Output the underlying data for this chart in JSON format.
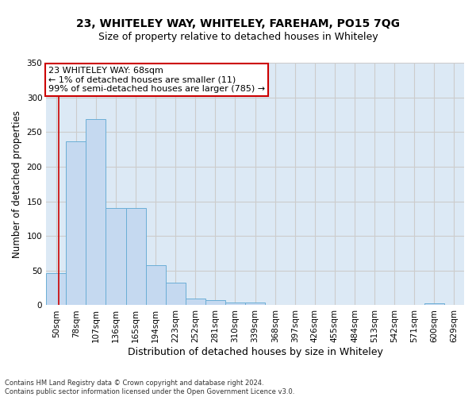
{
  "title_line1": "23, WHITELEY WAY, WHITELEY, FAREHAM, PO15 7QG",
  "title_line2": "Size of property relative to detached houses in Whiteley",
  "xlabel": "Distribution of detached houses by size in Whiteley",
  "ylabel": "Number of detached properties",
  "bar_labels": [
    "50sqm",
    "78sqm",
    "107sqm",
    "136sqm",
    "165sqm",
    "194sqm",
    "223sqm",
    "252sqm",
    "281sqm",
    "310sqm",
    "339sqm",
    "368sqm",
    "397sqm",
    "426sqm",
    "455sqm",
    "484sqm",
    "513sqm",
    "542sqm",
    "571sqm",
    "600sqm",
    "629sqm"
  ],
  "bar_values": [
    46,
    237,
    269,
    140,
    140,
    58,
    33,
    10,
    7,
    4,
    4,
    0,
    0,
    0,
    0,
    0,
    0,
    0,
    0,
    3,
    0
  ],
  "bar_color": "#c5d9f0",
  "bar_edge_color": "#6baed6",
  "annotation_line1": "23 WHITELEY WAY: 68sqm",
  "annotation_line2": "← 1% of detached houses are smaller (11)",
  "annotation_line3": "99% of semi-detached houses are larger (785) →",
  "annotation_box_color": "#ffffff",
  "annotation_box_edge_color": "#cc0000",
  "vline_color": "#cc0000",
  "vline_x_index": 0.5,
  "ylim": [
    0,
    350
  ],
  "yticks": [
    0,
    50,
    100,
    150,
    200,
    250,
    300,
    350
  ],
  "grid_color": "#cccccc",
  "bg_color": "#dce9f5",
  "footer_text": "Contains HM Land Registry data © Crown copyright and database right 2024.\nContains public sector information licensed under the Open Government Licence v3.0.",
  "title_fontsize": 10,
  "subtitle_fontsize": 9,
  "ylabel_fontsize": 8.5,
  "xlabel_fontsize": 9,
  "tick_fontsize": 7.5,
  "annotation_fontsize": 8,
  "footer_fontsize": 6
}
